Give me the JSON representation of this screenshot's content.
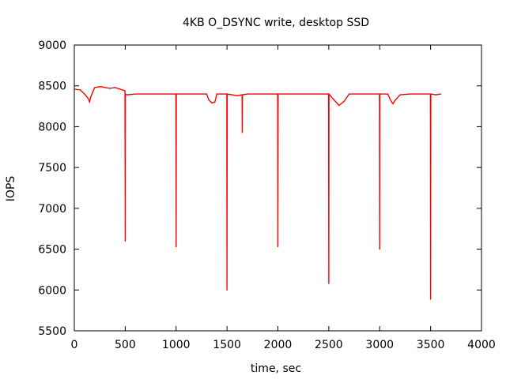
{
  "chart_data": {
    "type": "line",
    "title": "4KB O_DSYNC write, desktop SSD",
    "xlabel": "time, sec",
    "ylabel": "IOPS",
    "xlim": [
      0,
      4000
    ],
    "ylim": [
      5500,
      9000
    ],
    "xticks": [
      0,
      500,
      1000,
      1500,
      2000,
      2500,
      3000,
      3500,
      4000
    ],
    "yticks": [
      5500,
      6000,
      6500,
      7000,
      7500,
      8000,
      8500,
      9000
    ],
    "grid": false,
    "legend": "none",
    "series_color": "#ff0000",
    "series": [
      {
        "x": [
          0,
          60,
          100,
          140,
          150,
          160,
          180,
          200,
          260,
          300,
          350,
          400,
          450,
          498,
          500,
          502,
          520,
          600,
          700,
          800,
          900,
          998,
          1000,
          1002,
          1100,
          1200,
          1300,
          1320,
          1350,
          1380,
          1400,
          1420,
          1498,
          1500,
          1502,
          1550,
          1600,
          1648,
          1650,
          1652,
          1700,
          1800,
          1900,
          1998,
          2000,
          2002,
          2100,
          2200,
          2300,
          2400,
          2498,
          2500,
          2502,
          2550,
          2600,
          2650,
          2700,
          2800,
          2900,
          2998,
          3000,
          3002,
          3080,
          3100,
          3130,
          3150,
          3200,
          3300,
          3400,
          3498,
          3500,
          3502,
          3550,
          3600
        ],
        "values": [
          8460,
          8450,
          8400,
          8340,
          8300,
          8360,
          8420,
          8480,
          8490,
          8480,
          8470,
          8480,
          8460,
          8440,
          6600,
          8400,
          8390,
          8400,
          8400,
          8400,
          8400,
          8400,
          6530,
          8400,
          8400,
          8400,
          8400,
          8330,
          8290,
          8300,
          8400,
          8400,
          8400,
          6000,
          8400,
          8390,
          8380,
          8390,
          7930,
          8390,
          8400,
          8400,
          8400,
          8400,
          6530,
          8400,
          8400,
          8400,
          8400,
          8400,
          8400,
          6080,
          8400,
          8330,
          8260,
          8310,
          8400,
          8400,
          8400,
          8400,
          6500,
          8400,
          8400,
          8340,
          8280,
          8320,
          8390,
          8400,
          8400,
          8400,
          5890,
          8400,
          8390,
          8400
        ]
      }
    ]
  }
}
